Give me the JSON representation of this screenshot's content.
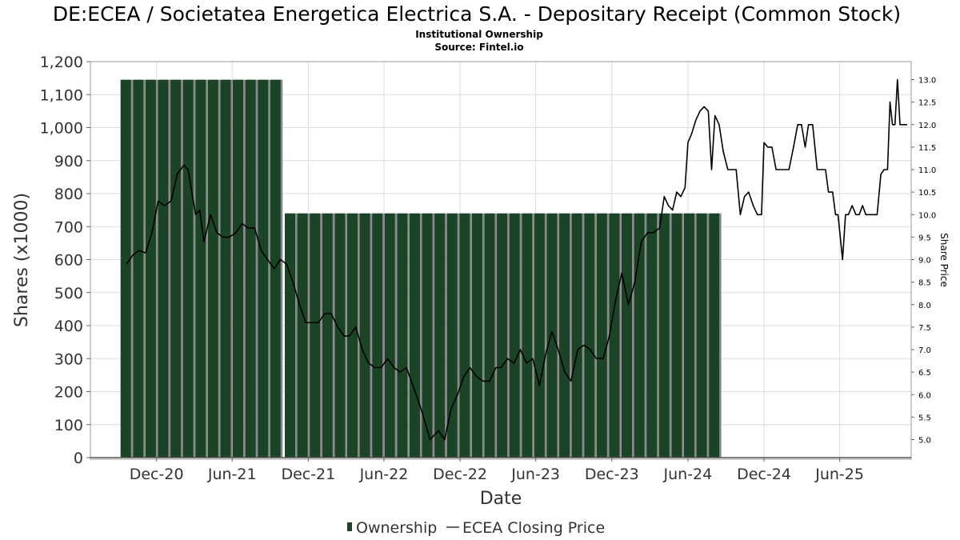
{
  "title": "DE:ECEA / Societatea Energetica Electrica S.A. - Depositary Receipt (Common Stock)",
  "subtitle_1": "Institutional Ownership",
  "subtitle_2": "Source: Fintel.io",
  "xlabel": "Date",
  "ylabel": "Shares (x1000)",
  "y2label": "Share Price",
  "legend": {
    "ownership": "Ownership",
    "price": "ECEA Closing Price"
  },
  "colors": {
    "bar": "#1b4426",
    "bar_shadow": "#8a8a8a",
    "line": "#000000",
    "grid": "#dddddd"
  },
  "chart_data": {
    "type": "bar",
    "title": "DE:ECEA / Societatea Energetica Electrica S.A. - Depositary Receipt (Common Stock)",
    "xlabel": "Date",
    "ylabel": "Shares (x1000)",
    "ylim": [
      0,
      1200
    ],
    "y2lim": [
      4.6,
      13.4
    ],
    "xlim": [
      "2020-06-25",
      "2025-11-20"
    ],
    "grid": true,
    "legend_position": "bottom",
    "x_ticks": [
      {
        "date": "2020-12-01",
        "label": "Dec-20"
      },
      {
        "date": "2021-06-01",
        "label": "Jun-21"
      },
      {
        "date": "2021-12-01",
        "label": "Dec-21"
      },
      {
        "date": "2022-06-01",
        "label": "Jun-22"
      },
      {
        "date": "2022-12-01",
        "label": "Dec-22"
      },
      {
        "date": "2023-06-01",
        "label": "Jun-23"
      },
      {
        "date": "2023-12-01",
        "label": "Dec-23"
      },
      {
        "date": "2024-06-01",
        "label": "Jun-24"
      },
      {
        "date": "2024-12-01",
        "label": "Dec-24"
      },
      {
        "date": "2025-06-01",
        "label": "Jun-25"
      }
    ],
    "y_ticks": [
      {
        "value": 0,
        "label": "0"
      },
      {
        "value": 100,
        "label": "100"
      },
      {
        "value": 200,
        "label": "200"
      },
      {
        "value": 300,
        "label": "300"
      },
      {
        "value": 400,
        "label": "400"
      },
      {
        "value": 500,
        "label": "500"
      },
      {
        "value": 600,
        "label": "600"
      },
      {
        "value": 700,
        "label": "700"
      },
      {
        "value": 800,
        "label": "800"
      },
      {
        "value": 900,
        "label": "900"
      },
      {
        "value": 1000,
        "label": "1,000"
      },
      {
        "value": 1100,
        "label": "1,100"
      },
      {
        "value": 1200,
        "label": "1,200"
      }
    ],
    "y2_ticks": [
      {
        "value": 5.0,
        "label": "5.0"
      },
      {
        "value": 5.5,
        "label": "5.5"
      },
      {
        "value": 6.0,
        "label": "6.0"
      },
      {
        "value": 6.5,
        "label": "6.5"
      },
      {
        "value": 7.0,
        "label": "7.0"
      },
      {
        "value": 7.5,
        "label": "7.5"
      },
      {
        "value": 8.0,
        "label": "8.0"
      },
      {
        "value": 8.5,
        "label": "8.5"
      },
      {
        "value": 9.0,
        "label": "9.0"
      },
      {
        "value": 9.5,
        "label": "9.5"
      },
      {
        "value": 10.0,
        "label": "10.0"
      },
      {
        "value": 10.5,
        "label": "10.5"
      },
      {
        "value": 11.0,
        "label": "11.0"
      },
      {
        "value": 11.5,
        "label": "11.5"
      },
      {
        "value": 12.0,
        "label": "12.0"
      },
      {
        "value": 12.5,
        "label": "12.5"
      },
      {
        "value": 13.0,
        "label": "13.0"
      }
    ],
    "series": [
      {
        "name": "Ownership",
        "type": "bar",
        "bar_width_days": 25,
        "points": [
          {
            "x": "2020-09-18",
            "y": 1145
          },
          {
            "x": "2020-10-18",
            "y": 1145
          },
          {
            "x": "2020-11-17",
            "y": 1145
          },
          {
            "x": "2020-12-17",
            "y": 1145
          },
          {
            "x": "2021-01-16",
            "y": 1145
          },
          {
            "x": "2021-02-15",
            "y": 1145
          },
          {
            "x": "2021-03-17",
            "y": 1145
          },
          {
            "x": "2021-04-16",
            "y": 1145
          },
          {
            "x": "2021-05-16",
            "y": 1145
          },
          {
            "x": "2021-06-15",
            "y": 1145
          },
          {
            "x": "2021-07-15",
            "y": 1145
          },
          {
            "x": "2021-08-14",
            "y": 1145
          },
          {
            "x": "2021-09-13",
            "y": 1145
          },
          {
            "x": "2021-10-18",
            "y": 740
          },
          {
            "x": "2021-11-17",
            "y": 740
          },
          {
            "x": "2021-12-17",
            "y": 740
          },
          {
            "x": "2022-01-16",
            "y": 740
          },
          {
            "x": "2022-02-15",
            "y": 740
          },
          {
            "x": "2022-03-17",
            "y": 740
          },
          {
            "x": "2022-04-16",
            "y": 740
          },
          {
            "x": "2022-05-16",
            "y": 740
          },
          {
            "x": "2022-06-15",
            "y": 740
          },
          {
            "x": "2022-07-15",
            "y": 740
          },
          {
            "x": "2022-08-14",
            "y": 740
          },
          {
            "x": "2022-09-13",
            "y": 740
          },
          {
            "x": "2022-10-13",
            "y": 740
          },
          {
            "x": "2022-11-12",
            "y": 740
          },
          {
            "x": "2022-12-12",
            "y": 740
          },
          {
            "x": "2023-01-11",
            "y": 740
          },
          {
            "x": "2023-02-10",
            "y": 740
          },
          {
            "x": "2023-03-12",
            "y": 740
          },
          {
            "x": "2023-04-11",
            "y": 740
          },
          {
            "x": "2023-05-11",
            "y": 740
          },
          {
            "x": "2023-06-10",
            "y": 740
          },
          {
            "x": "2023-07-10",
            "y": 740
          },
          {
            "x": "2023-08-09",
            "y": 740
          },
          {
            "x": "2023-09-08",
            "y": 740
          },
          {
            "x": "2023-10-08",
            "y": 740
          },
          {
            "x": "2023-11-07",
            "y": 740
          },
          {
            "x": "2023-12-07",
            "y": 740
          },
          {
            "x": "2024-01-06",
            "y": 740
          },
          {
            "x": "2024-02-05",
            "y": 740
          },
          {
            "x": "2024-03-06",
            "y": 740
          },
          {
            "x": "2024-04-05",
            "y": 740
          },
          {
            "x": "2024-05-05",
            "y": 740
          },
          {
            "x": "2024-06-04",
            "y": 740
          },
          {
            "x": "2024-07-04",
            "y": 740
          },
          {
            "x": "2024-08-03",
            "y": 740
          }
        ]
      },
      {
        "name": "ECEA Closing Price",
        "type": "line",
        "axis": "right",
        "points": [
          {
            "x": "2020-09-20",
            "y": 8.9
          },
          {
            "x": "2020-10-05",
            "y": 9.1
          },
          {
            "x": "2020-10-20",
            "y": 9.2
          },
          {
            "x": "2020-11-05",
            "y": 9.15
          },
          {
            "x": "2020-11-20",
            "y": 9.6
          },
          {
            "x": "2020-12-05",
            "y": 10.3
          },
          {
            "x": "2020-12-20",
            "y": 10.2
          },
          {
            "x": "2021-01-05",
            "y": 10.3
          },
          {
            "x": "2021-01-20",
            "y": 10.9
          },
          {
            "x": "2021-02-05",
            "y": 11.1
          },
          {
            "x": "2021-02-15",
            "y": 11.0
          },
          {
            "x": "2021-03-05",
            "y": 10.0
          },
          {
            "x": "2021-03-15",
            "y": 10.1
          },
          {
            "x": "2021-03-25",
            "y": 9.4
          },
          {
            "x": "2021-04-10",
            "y": 10.0
          },
          {
            "x": "2021-04-25",
            "y": 9.6
          },
          {
            "x": "2021-05-10",
            "y": 9.5
          },
          {
            "x": "2021-05-25",
            "y": 9.5
          },
          {
            "x": "2021-06-10",
            "y": 9.6
          },
          {
            "x": "2021-06-25",
            "y": 9.8
          },
          {
            "x": "2021-07-10",
            "y": 9.7
          },
          {
            "x": "2021-07-25",
            "y": 9.7
          },
          {
            "x": "2021-08-10",
            "y": 9.2
          },
          {
            "x": "2021-08-25",
            "y": 9.0
          },
          {
            "x": "2021-09-10",
            "y": 8.8
          },
          {
            "x": "2021-09-25",
            "y": 9.0
          },
          {
            "x": "2021-10-10",
            "y": 8.9
          },
          {
            "x": "2021-10-25",
            "y": 8.5
          },
          {
            "x": "2021-11-10",
            "y": 8.0
          },
          {
            "x": "2021-11-25",
            "y": 7.6
          },
          {
            "x": "2021-12-10",
            "y": 7.6
          },
          {
            "x": "2021-12-25",
            "y": 7.6
          },
          {
            "x": "2022-01-10",
            "y": 7.8
          },
          {
            "x": "2022-01-25",
            "y": 7.8
          },
          {
            "x": "2022-02-10",
            "y": 7.5
          },
          {
            "x": "2022-02-25",
            "y": 7.3
          },
          {
            "x": "2022-03-10",
            "y": 7.3
          },
          {
            "x": "2022-03-25",
            "y": 7.5
          },
          {
            "x": "2022-04-10",
            "y": 7.0
          },
          {
            "x": "2022-04-25",
            "y": 6.7
          },
          {
            "x": "2022-05-10",
            "y": 6.6
          },
          {
            "x": "2022-05-25",
            "y": 6.6
          },
          {
            "x": "2022-06-10",
            "y": 6.8
          },
          {
            "x": "2022-06-25",
            "y": 6.6
          },
          {
            "x": "2022-07-10",
            "y": 6.5
          },
          {
            "x": "2022-07-25",
            "y": 6.6
          },
          {
            "x": "2022-08-10",
            "y": 6.2
          },
          {
            "x": "2022-09-01",
            "y": 5.6
          },
          {
            "x": "2022-09-20",
            "y": 5.0
          },
          {
            "x": "2022-10-10",
            "y": 5.2
          },
          {
            "x": "2022-10-25",
            "y": 5.0
          },
          {
            "x": "2022-11-10",
            "y": 5.7
          },
          {
            "x": "2022-11-25",
            "y": 6.0
          },
          {
            "x": "2022-12-10",
            "y": 6.4
          },
          {
            "x": "2022-12-25",
            "y": 6.6
          },
          {
            "x": "2023-01-10",
            "y": 6.4
          },
          {
            "x": "2023-01-25",
            "y": 6.3
          },
          {
            "x": "2023-02-10",
            "y": 6.3
          },
          {
            "x": "2023-02-25",
            "y": 6.6
          },
          {
            "x": "2023-03-10",
            "y": 6.6
          },
          {
            "x": "2023-03-25",
            "y": 6.8
          },
          {
            "x": "2023-04-10",
            "y": 6.7
          },
          {
            "x": "2023-04-25",
            "y": 7.0
          },
          {
            "x": "2023-05-10",
            "y": 6.7
          },
          {
            "x": "2023-05-25",
            "y": 6.8
          },
          {
            "x": "2023-06-10",
            "y": 6.2
          },
          {
            "x": "2023-06-25",
            "y": 6.9
          },
          {
            "x": "2023-07-10",
            "y": 7.4
          },
          {
            "x": "2023-07-25",
            "y": 7.0
          },
          {
            "x": "2023-08-10",
            "y": 6.5
          },
          {
            "x": "2023-08-25",
            "y": 6.3
          },
          {
            "x": "2023-09-10",
            "y": 7.0
          },
          {
            "x": "2023-09-25",
            "y": 7.1
          },
          {
            "x": "2023-10-10",
            "y": 7.0
          },
          {
            "x": "2023-10-25",
            "y": 6.8
          },
          {
            "x": "2023-11-10",
            "y": 6.8
          },
          {
            "x": "2023-11-25",
            "y": 7.3
          },
          {
            "x": "2023-12-10",
            "y": 8.1
          },
          {
            "x": "2023-12-25",
            "y": 8.7
          },
          {
            "x": "2024-01-10",
            "y": 8.0
          },
          {
            "x": "2024-01-25",
            "y": 8.5
          },
          {
            "x": "2024-02-10",
            "y": 9.4
          },
          {
            "x": "2024-02-25",
            "y": 9.6
          },
          {
            "x": "2024-03-10",
            "y": 9.6
          },
          {
            "x": "2024-03-25",
            "y": 9.7
          },
          {
            "x": "2024-04-05",
            "y": 10.4
          },
          {
            "x": "2024-04-15",
            "y": 10.2
          },
          {
            "x": "2024-04-25",
            "y": 10.1
          },
          {
            "x": "2024-05-05",
            "y": 10.5
          },
          {
            "x": "2024-05-15",
            "y": 10.4
          },
          {
            "x": "2024-05-25",
            "y": 10.6
          },
          {
            "x": "2024-06-01",
            "y": 11.6
          },
          {
            "x": "2024-06-10",
            "y": 11.8
          },
          {
            "x": "2024-06-20",
            "y": 12.1
          },
          {
            "x": "2024-06-30",
            "y": 12.3
          },
          {
            "x": "2024-07-10",
            "y": 12.4
          },
          {
            "x": "2024-07-20",
            "y": 12.3
          },
          {
            "x": "2024-07-28",
            "y": 11.0
          },
          {
            "x": "2024-08-05",
            "y": 12.2
          },
          {
            "x": "2024-08-15",
            "y": 12.0
          },
          {
            "x": "2024-08-25",
            "y": 11.4
          },
          {
            "x": "2024-09-05",
            "y": 11.0
          },
          {
            "x": "2024-09-15",
            "y": 11.0
          },
          {
            "x": "2024-09-25",
            "y": 11.0
          },
          {
            "x": "2024-10-05",
            "y": 10.0
          },
          {
            "x": "2024-10-15",
            "y": 10.4
          },
          {
            "x": "2024-10-25",
            "y": 10.5
          },
          {
            "x": "2024-11-05",
            "y": 10.2
          },
          {
            "x": "2024-11-15",
            "y": 10.0
          },
          {
            "x": "2024-11-25",
            "y": 10.0
          },
          {
            "x": "2024-12-01",
            "y": 11.6
          },
          {
            "x": "2024-12-10",
            "y": 11.5
          },
          {
            "x": "2024-12-20",
            "y": 11.5
          },
          {
            "x": "2024-12-30",
            "y": 11.0
          },
          {
            "x": "2025-01-10",
            "y": 11.0
          },
          {
            "x": "2025-01-20",
            "y": 11.0
          },
          {
            "x": "2025-01-30",
            "y": 11.0
          },
          {
            "x": "2025-02-10",
            "y": 11.5
          },
          {
            "x": "2025-02-20",
            "y": 12.0
          },
          {
            "x": "2025-03-01",
            "y": 12.0
          },
          {
            "x": "2025-03-10",
            "y": 11.5
          },
          {
            "x": "2025-03-18",
            "y": 12.0
          },
          {
            "x": "2025-03-28",
            "y": 12.0
          },
          {
            "x": "2025-04-08",
            "y": 11.0
          },
          {
            "x": "2025-04-18",
            "y": 11.0
          },
          {
            "x": "2025-04-28",
            "y": 11.0
          },
          {
            "x": "2025-05-05",
            "y": 10.5
          },
          {
            "x": "2025-05-15",
            "y": 10.5
          },
          {
            "x": "2025-05-22",
            "y": 10.0
          },
          {
            "x": "2025-05-28",
            "y": 10.0
          },
          {
            "x": "2025-06-08",
            "y": 9.0
          },
          {
            "x": "2025-06-15",
            "y": 10.0
          },
          {
            "x": "2025-06-22",
            "y": 10.0
          },
          {
            "x": "2025-07-01",
            "y": 10.2
          },
          {
            "x": "2025-07-10",
            "y": 10.0
          },
          {
            "x": "2025-07-18",
            "y": 10.0
          },
          {
            "x": "2025-07-26",
            "y": 10.2
          },
          {
            "x": "2025-08-03",
            "y": 10.0
          },
          {
            "x": "2025-08-12",
            "y": 10.0
          },
          {
            "x": "2025-08-21",
            "y": 10.0
          },
          {
            "x": "2025-08-30",
            "y": 10.0
          },
          {
            "x": "2025-09-08",
            "y": 10.9
          },
          {
            "x": "2025-09-16",
            "y": 11.0
          },
          {
            "x": "2025-09-24",
            "y": 11.0
          },
          {
            "x": "2025-09-30",
            "y": 12.5
          },
          {
            "x": "2025-10-06",
            "y": 12.0
          },
          {
            "x": "2025-10-12",
            "y": 12.0
          },
          {
            "x": "2025-10-18",
            "y": 13.0
          },
          {
            "x": "2025-10-24",
            "y": 12.0
          },
          {
            "x": "2025-11-01",
            "y": 12.0
          },
          {
            "x": "2025-11-10",
            "y": 12.0
          }
        ]
      }
    ]
  }
}
